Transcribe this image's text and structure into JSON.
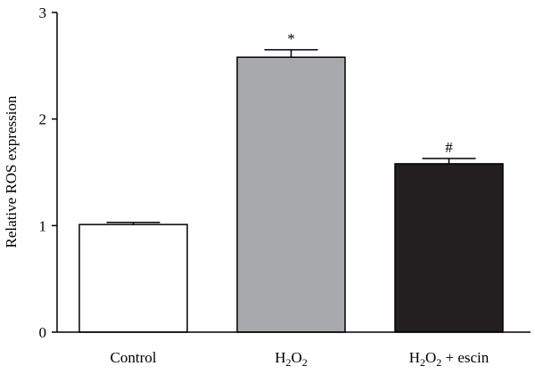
{
  "chart_data": {
    "type": "bar",
    "categories": [
      "Control",
      "H2O2",
      "H2O2 + escin"
    ],
    "category_labels": [
      {
        "text": "Control"
      },
      {
        "base": "H",
        "sub1": "2",
        "mid": "O",
        "sub2": "2",
        "tail": ""
      },
      {
        "base": "H",
        "sub1": "2",
        "mid": "O",
        "sub2": "2",
        "tail": " + escin"
      }
    ],
    "values": [
      1.01,
      2.58,
      1.58
    ],
    "errors": [
      0.02,
      0.07,
      0.05
    ],
    "annotations": [
      "",
      "*",
      "#"
    ],
    "bar_colors": [
      "#ffffff",
      "#a7a9ac",
      "#231f20"
    ],
    "bar_edge_color": "#000000",
    "ylabel": "Relative ROS expression",
    "xlabel": "",
    "title": "",
    "ylim": [
      0,
      3
    ],
    "yticks": [
      0,
      1,
      2,
      3
    ],
    "ytick_labels": [
      "0",
      "1",
      "2",
      "3"
    ],
    "grid": false,
    "legend": "none"
  }
}
